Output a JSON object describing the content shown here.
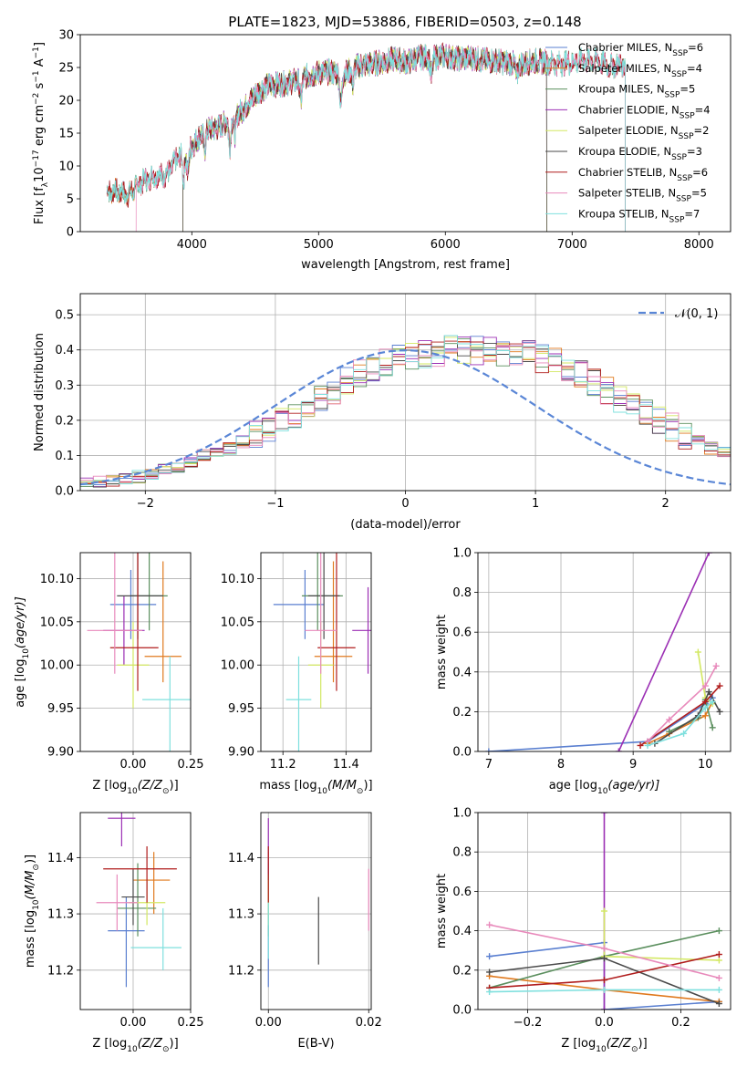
{
  "colors": [
    "#5a7fd0",
    "#e07a1f",
    "#5b8f5e",
    "#9b2fb4",
    "#d3e862",
    "#4a4a4a",
    "#b01c1c",
    "#e889bb",
    "#7fe0de"
  ],
  "panel1": {
    "title": "PLATE=1823, MJD=53886, FIBERID=0503, z=0.148",
    "xlabel": "wavelength [Angstrom, rest frame]",
    "ylabel_parts": [
      "Flux [f",
      "λ",
      "10",
      "−17",
      " erg cm",
      "−2",
      " s",
      "−1",
      " A",
      "−1",
      "]"
    ],
    "xticks": [
      "4000",
      "5000",
      "6000",
      "7000",
      "8000"
    ],
    "yticks": [
      "0",
      "5",
      "10",
      "15",
      "20",
      "25",
      "30"
    ],
    "legend": [
      {
        "main": "Chabrier MILES, N",
        "sub": "SSP",
        "tail": "=6"
      },
      {
        "main": "Salpeter MILES, N",
        "sub": "SSP",
        "tail": "=4"
      },
      {
        "main": "Kroupa MILES, N",
        "sub": "SSP",
        "tail": "=5"
      },
      {
        "main": "Chabrier ELODIE, N",
        "sub": "SSP",
        "tail": "=4"
      },
      {
        "main": "Salpeter ELODIE, N",
        "sub": "SSP",
        "tail": "=2"
      },
      {
        "main": "Kroupa ELODIE, N",
        "sub": "SSP",
        "tail": "=3"
      },
      {
        "main": "Chabrier STELIB, N",
        "sub": "SSP",
        "tail": "=6"
      },
      {
        "main": "Salpeter STELIB, N",
        "sub": "SSP",
        "tail": "=5"
      },
      {
        "main": "Kroupa STELIB, N",
        "sub": "SSP",
        "tail": "=7"
      }
    ]
  },
  "panel2": {
    "xlabel": "(data-model)/error",
    "ylabel": "Normed distribution",
    "xticks": [
      "−2",
      "−1",
      "0",
      "1",
      "2"
    ],
    "yticks": [
      "0.0",
      "0.1",
      "0.2",
      "0.3",
      "0.4",
      "0.5"
    ],
    "legend": "𝒩(0, 1)"
  },
  "panel3": {
    "xlabel": "Z [log",
    "xlabel_sub": "10",
    "xlabel_tail": "(Z/Z",
    "sun": "⊙",
    "close": ")]",
    "ylabel": "age  [log",
    "ylabel_sub": "10",
    "ylabel_tail": "(age/yr)]",
    "xticks": [
      "0.00",
      "0.25"
    ],
    "yticks": [
      "9.90",
      "9.95",
      "10.00",
      "10.05",
      "10.10"
    ]
  },
  "panel4": {
    "xlabel": "mass [log",
    "xlabel_sub": "10",
    "xlabel_tail": "(M/M",
    "sun": "⊙",
    "close": ")]",
    "xticks": [
      "11.2",
      "11.4"
    ],
    "yticks": [
      "9.90",
      "9.95",
      "10.00",
      "10.05",
      "10.10"
    ]
  },
  "panel5": {
    "xlabel": "age  [log",
    "xlabel_sub": "10",
    "xlabel_tail": "(age/yr)]",
    "ylabel": "mass weight",
    "xticks": [
      "7",
      "8",
      "9",
      "10"
    ],
    "yticks": [
      "0.0",
      "0.2",
      "0.4",
      "0.6",
      "0.8",
      "1.0"
    ]
  },
  "panel6": {
    "xlabel": "Z [log",
    "xlabel_sub": "10",
    "xlabel_tail": "(Z/Z",
    "sun": "⊙",
    "close": ")]",
    "ylabel": "mass [log",
    "ylabel_sub": "10",
    "ylabel_tail": "(M/M",
    "ysun": "⊙",
    "yclose": ")]",
    "xticks": [
      "0.00",
      "0.25"
    ],
    "yticks": [
      "11.2",
      "11.3",
      "11.4"
    ]
  },
  "panel7": {
    "xlabel": "E(B-V)",
    "xticks": [
      "0.00",
      "0.02"
    ],
    "yticks": [
      "11.2",
      "11.3",
      "11.4"
    ]
  },
  "panel8": {
    "xlabel": "Z [log",
    "xlabel_sub": "10",
    "xlabel_tail": "(Z/Z",
    "sun": "⊙",
    "close": ")]",
    "ylabel": "mass weight",
    "xticks": [
      "−0.2",
      "0.0",
      "0.2"
    ],
    "yticks": [
      "0.0",
      "0.2",
      "0.4",
      "0.6",
      "0.8",
      "1.0"
    ]
  },
  "chart_data": [
    {
      "type": "line",
      "title": "PLATE=1823, MJD=53886, FIBERID=0503, z=0.148",
      "xlabel": "wavelength [Angstrom, rest frame]",
      "ylabel": "Flux",
      "xlim": [
        3120,
        8250
      ],
      "ylim": [
        0,
        30
      ],
      "continuum": {
        "x": [
          3330,
          3400,
          3500,
          3600,
          3700,
          3800,
          3900,
          4000,
          4100,
          4200,
          4300,
          4400,
          4500,
          4600,
          4700,
          4800,
          4900,
          5000,
          5100,
          5200,
          5300,
          5400,
          5500,
          5600,
          5700,
          5800,
          5900,
          6000,
          6100,
          6200,
          6300,
          6400,
          6500,
          6600,
          6700,
          6800,
          6900,
          7000,
          7100,
          7200,
          7300,
          7400
        ],
        "y": [
          6.0,
          6.2,
          5.6,
          7.5,
          8.5,
          8.6,
          11.6,
          13.0,
          15.5,
          15.8,
          17.0,
          18.5,
          20.8,
          22.3,
          22.5,
          22.8,
          23.6,
          24.2,
          24.3,
          24.0,
          25.2,
          25.5,
          25.8,
          26.3,
          25.8,
          26.6,
          26.5,
          26.8,
          26.3,
          26.5,
          26.1,
          26.0,
          25.7,
          25.5,
          26.0,
          25.8,
          25.6,
          25.8,
          26.1,
          26.0,
          25.2,
          25.5
        ]
      },
      "series": [
        "Chabrier MILES",
        "Salpeter MILES",
        "Kroupa MILES",
        "Chabrier ELODIE",
        "Salpeter ELODIE",
        "Kroupa ELODIE",
        "Chabrier STELIB",
        "Salpeter STELIB",
        "Kroupa STELIB"
      ],
      "wave_end": [
        7420,
        7420,
        7420,
        6800,
        6800,
        6800,
        7420,
        7420,
        7420
      ],
      "wave_start": [
        3330,
        3330,
        3330,
        3930,
        3930,
        3930,
        3330,
        3560,
        3330
      ]
    },
    {
      "type": "histogram",
      "xlabel": "(data-model)/error",
      "ylabel": "Normed distribution",
      "xlim": [
        -2.5,
        2.5
      ],
      "ylim": [
        0,
        0.56
      ],
      "bin_start": -2.5,
      "bin_width": 0.1,
      "series_base": [
        0.02,
        0.025,
        0.03,
        0.035,
        0.04,
        0.05,
        0.06,
        0.07,
        0.085,
        0.1,
        0.11,
        0.12,
        0.14,
        0.16,
        0.18,
        0.2,
        0.22,
        0.245,
        0.265,
        0.285,
        0.31,
        0.33,
        0.35,
        0.365,
        0.375,
        0.385,
        0.39,
        0.395,
        0.4,
        0.4,
        0.4,
        0.4,
        0.395,
        0.39,
        0.385,
        0.375,
        0.365,
        0.35,
        0.33,
        0.31,
        0.285,
        0.265,
        0.245,
        0.22,
        0.2,
        0.18,
        0.16,
        0.14,
        0.12,
        0.11,
        0.1
      ],
      "normal": {
        "mu": 0,
        "sigma": 1,
        "label": "N(0,1)"
      }
    },
    {
      "type": "scatter",
      "xlabel": "Z",
      "ylabel": "age",
      "xlim": [
        -0.23,
        0.25
      ],
      "ylim": [
        9.9,
        10.13
      ],
      "points": [
        {
          "x": -0.01,
          "y": 10.07,
          "xerr": [
            0.09,
            0.11
          ],
          "yerr": [
            0.04,
            0.04
          ]
        },
        {
          "x": 0.13,
          "y": 10.01,
          "xerr": [
            0.08,
            0.08
          ],
          "yerr": [
            0.03,
            0.11
          ]
        },
        {
          "x": 0.07,
          "y": 10.08,
          "xerr": [
            0.08,
            0.08
          ],
          "yerr": [
            0.04,
            0.12
          ]
        },
        {
          "x": -0.04,
          "y": 10.04,
          "xerr": [
            0.09,
            0.09
          ],
          "yerr": [
            0.04,
            0.04
          ]
        },
        {
          "x": 0.0,
          "y": 10.0,
          "xerr": [
            0.07,
            0.07
          ],
          "yerr": [
            0.05,
            0.05
          ]
        },
        {
          "x": 0.02,
          "y": 10.08,
          "xerr": [
            0.09,
            0.11
          ],
          "yerr": [
            0.05,
            0.05
          ]
        },
        {
          "x": 0.02,
          "y": 10.02,
          "xerr": [
            0.12,
            0.09
          ],
          "yerr": [
            0.05,
            0.11
          ]
        },
        {
          "x": -0.08,
          "y": 10.04,
          "xerr": [
            0.12,
            0.12
          ],
          "yerr": [
            0.05,
            0.1
          ]
        },
        {
          "x": 0.16,
          "y": 9.96,
          "xerr": [
            0.12,
            0.09
          ],
          "yerr": [
            0.11,
            0.05
          ]
        }
      ]
    },
    {
      "type": "scatter",
      "xlabel": "mass",
      "ylabel": "age",
      "xlim": [
        11.13,
        11.48
      ],
      "ylim": [
        9.9,
        10.13
      ],
      "points": [
        {
          "x": 11.27,
          "y": 10.07,
          "xerr": [
            0.1,
            0.06
          ],
          "yerr": [
            0.04,
            0.04
          ]
        },
        {
          "x": 11.36,
          "y": 10.01,
          "xerr": [
            0.06,
            0.06
          ],
          "yerr": [
            0.03,
            0.11
          ]
        },
        {
          "x": 11.31,
          "y": 10.08,
          "xerr": [
            0.05,
            0.08
          ],
          "yerr": [
            0.04,
            0.12
          ]
        },
        {
          "x": 11.47,
          "y": 10.04,
          "xerr": [
            0.05,
            0.05
          ],
          "yerr": [
            0.05,
            0.05
          ]
        },
        {
          "x": 11.32,
          "y": 10.0,
          "xerr": [
            0.04,
            0.04
          ],
          "yerr": [
            0.05,
            0.05
          ]
        },
        {
          "x": 11.33,
          "y": 10.08,
          "xerr": [
            0.05,
            0.05
          ],
          "yerr": [
            0.05,
            0.05
          ]
        },
        {
          "x": 11.37,
          "y": 10.02,
          "xerr": [
            0.06,
            0.06
          ],
          "yerr": [
            0.05,
            0.11
          ]
        },
        {
          "x": 11.32,
          "y": 10.04,
          "xerr": [
            0.05,
            0.05
          ],
          "yerr": [
            0.05,
            0.1
          ]
        },
        {
          "x": 11.25,
          "y": 9.96,
          "xerr": [
            0.04,
            0.04
          ],
          "yerr": [
            0.11,
            0.05
          ]
        }
      ]
    },
    {
      "type": "line",
      "xlabel": "age",
      "ylabel": "mass weight",
      "xlim": [
        6.85,
        10.35
      ],
      "ylim": [
        0,
        1
      ],
      "series": [
        {
          "x": [
            7.0,
            9.2,
            10.0,
            10.1
          ],
          "y": [
            0.0,
            0.05,
            0.24,
            0.27
          ]
        },
        {
          "x": [
            9.2,
            9.5,
            10.0,
            10.1
          ],
          "y": [
            0.04,
            0.09,
            0.18,
            0.25
          ]
        },
        {
          "x": [
            9.5,
            9.9,
            10.0,
            10.1
          ],
          "y": [
            0.1,
            0.17,
            0.26,
            0.12
          ]
        },
        {
          "x": [
            8.8,
            10.05
          ],
          "y": [
            0.0,
            1.0
          ]
        },
        {
          "x": [
            9.9,
            10.0,
            10.1
          ],
          "y": [
            0.5,
            0.27,
            0.24
          ]
        },
        {
          "x": [
            9.3,
            9.9,
            10.05,
            10.2
          ],
          "y": [
            0.04,
            0.18,
            0.3,
            0.2
          ]
        },
        {
          "x": [
            9.1,
            10.0,
            10.2
          ],
          "y": [
            0.03,
            0.25,
            0.33
          ]
        },
        {
          "x": [
            9.2,
            9.5,
            10.0,
            10.15
          ],
          "y": [
            0.05,
            0.16,
            0.33,
            0.43
          ]
        },
        {
          "x": [
            9.2,
            9.7,
            10.0,
            10.1
          ],
          "y": [
            0.03,
            0.09,
            0.22,
            0.25
          ]
        }
      ]
    },
    {
      "type": "scatter",
      "xlabel": "Z",
      "ylabel": "mass",
      "xlim": [
        -0.23,
        0.25
      ],
      "ylim": [
        11.13,
        11.48
      ],
      "points": [
        {
          "x": -0.03,
          "y": 11.27,
          "xerr": [
            0.08,
            0.08
          ],
          "yerr": [
            0.1,
            0.06
          ]
        },
        {
          "x": 0.09,
          "y": 11.36,
          "xerr": [
            0.09,
            0.07
          ],
          "yerr": [
            0.06,
            0.05
          ]
        },
        {
          "x": 0.02,
          "y": 11.31,
          "xerr": [
            0.09,
            0.08
          ],
          "yerr": [
            0.05,
            0.08
          ]
        },
        {
          "x": -0.05,
          "y": 11.47,
          "xerr": [
            0.06,
            0.06
          ],
          "yerr": [
            0.05,
            0.05
          ]
        },
        {
          "x": 0.06,
          "y": 11.32,
          "xerr": [
            0.08,
            0.08
          ],
          "yerr": [
            0.04,
            0.04
          ]
        },
        {
          "x": 0.0,
          "y": 11.33,
          "xerr": [
            0.05,
            0.05
          ],
          "yerr": [
            0.05,
            0.05
          ]
        },
        {
          "x": 0.06,
          "y": 11.38,
          "xerr": [
            0.19,
            0.13
          ],
          "yerr": [
            0.06,
            0.04
          ]
        },
        {
          "x": -0.07,
          "y": 11.32,
          "xerr": [
            0.09,
            0.09
          ],
          "yerr": [
            0.05,
            0.05
          ]
        },
        {
          "x": 0.13,
          "y": 11.24,
          "xerr": [
            0.14,
            0.08
          ],
          "yerr": [
            0.04,
            0.07
          ]
        }
      ]
    },
    {
      "type": "scatter",
      "xlabel": "E(B-V)",
      "ylabel": "mass",
      "xlim": [
        -0.0015,
        0.0205
      ],
      "ylim": [
        11.13,
        11.48
      ],
      "points": [
        {
          "x": 0.0,
          "y": 11.27,
          "yerr": [
            0.1,
            0.06
          ]
        },
        {
          "x": 0.0,
          "y": 11.36,
          "yerr": [
            0.06,
            0.05
          ]
        },
        {
          "x": 0.0,
          "y": 11.31,
          "yerr": [
            0.05,
            0.08
          ]
        },
        {
          "x": 0.0,
          "y": 11.42,
          "yerr": [
            0.05,
            0.05
          ]
        },
        {
          "x": 0.0,
          "y": 11.32,
          "yerr": [
            0.04,
            0.04
          ]
        },
        {
          "x": 0.01,
          "y": 11.27,
          "yerr": [
            0.06,
            0.06
          ]
        },
        {
          "x": 0.0,
          "y": 11.38,
          "yerr": [
            0.06,
            0.04
          ]
        },
        {
          "x": 0.02,
          "y": 11.32,
          "yerr": [
            0.05,
            0.06
          ]
        },
        {
          "x": 0.0,
          "y": 11.27,
          "yerr": [
            0.05,
            0.05
          ]
        }
      ]
    },
    {
      "type": "line",
      "xlabel": "Z",
      "ylabel": "mass weight",
      "xlim": [
        -0.33,
        0.33
      ],
      "ylim": [
        0,
        1
      ],
      "series": [
        {
          "x": [
            -0.3,
            0.0,
            0.0,
            0.3
          ],
          "y": [
            0.27,
            0.34,
            0.0,
            0.04
          ]
        },
        {
          "x": [
            -0.3,
            0.0,
            0.3
          ],
          "y": [
            0.17,
            0.1,
            0.04
          ]
        },
        {
          "x": [
            -0.3,
            0.0,
            0.3
          ],
          "y": [
            0.11,
            0.27,
            0.4
          ]
        },
        {
          "x": [
            0.0,
            0.0
          ],
          "y": [
            0.0,
            1.0
          ]
        },
        {
          "x": [
            0.0,
            0.0,
            0.3
          ],
          "y": [
            0.5,
            0.27,
            0.25
          ]
        },
        {
          "x": [
            -0.3,
            0.0,
            0.3
          ],
          "y": [
            0.19,
            0.26,
            0.03
          ]
        },
        {
          "x": [
            -0.3,
            0.0,
            0.3
          ],
          "y": [
            0.11,
            0.15,
            0.28
          ]
        },
        {
          "x": [
            -0.3,
            0.0,
            0.3
          ],
          "y": [
            0.43,
            0.31,
            0.16
          ]
        },
        {
          "x": [
            -0.3,
            0.0,
            0.3
          ],
          "y": [
            0.09,
            0.1,
            0.1
          ]
        }
      ]
    }
  ]
}
